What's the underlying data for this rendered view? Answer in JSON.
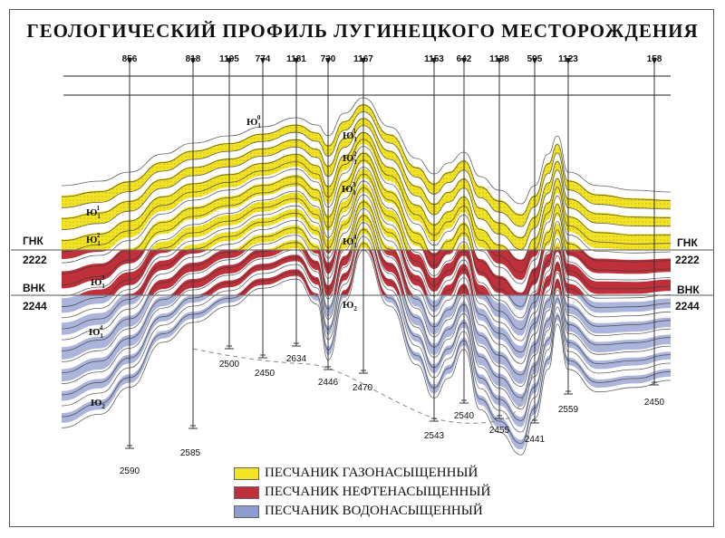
{
  "title": "ГЕОЛОГИЧЕСКИЙ ПРОФИЛЬ ЛУГИНЕЦКОГО МЕСТОРОЖДЕНИЯ",
  "wells": [
    {
      "id": "856",
      "depth": "2590"
    },
    {
      "id": "818",
      "depth": "2585"
    },
    {
      "id": "1195",
      "depth": "2500"
    },
    {
      "id": "774",
      "depth": "2450"
    },
    {
      "id": "1181",
      "depth": "2634"
    },
    {
      "id": "730",
      "depth": "2446"
    },
    {
      "id": "1167",
      "depth": "2470"
    },
    {
      "id": "1153",
      "depth": "2543"
    },
    {
      "id": "642",
      "depth": "2540"
    },
    {
      "id": "1138",
      "depth": "2455"
    },
    {
      "id": "595",
      "depth": "2441"
    },
    {
      "id": "1123",
      "depth": "2559"
    },
    {
      "id": "158",
      "depth": "2450"
    }
  ],
  "contacts": {
    "gnk": {
      "label": "ГНК",
      "depth": "2222"
    },
    "vnk": {
      "label": "ВНК",
      "depth": "2244"
    }
  },
  "layer_labels": [
    {
      "base": "Ю",
      "sub": "1",
      "sup": "0"
    },
    {
      "base": "Ю",
      "sub": "1",
      "sup": "1"
    },
    {
      "base": "Ю",
      "sub": "1",
      "sup": "2"
    },
    {
      "base": "Ю",
      "sub": "1",
      "sup": "3"
    },
    {
      "base": "Ю",
      "sub": "1",
      "sup": "4"
    },
    {
      "base": "Ю",
      "sub": "2",
      "sup": ""
    }
  ],
  "legend": [
    {
      "label": "ПЕСЧАНИК ГАЗОНАСЫЩЕННЫЙ",
      "color": "#f3e325"
    },
    {
      "label": "ПЕСЧАНИК НЕФТЕНАСЫЩЕННЫЙ",
      "color": "#c0303a"
    },
    {
      "label": "ПЕСЧАНИК ВОДОНАСЫЩЕННЫЙ",
      "color": "#8f9ccf"
    }
  ]
}
